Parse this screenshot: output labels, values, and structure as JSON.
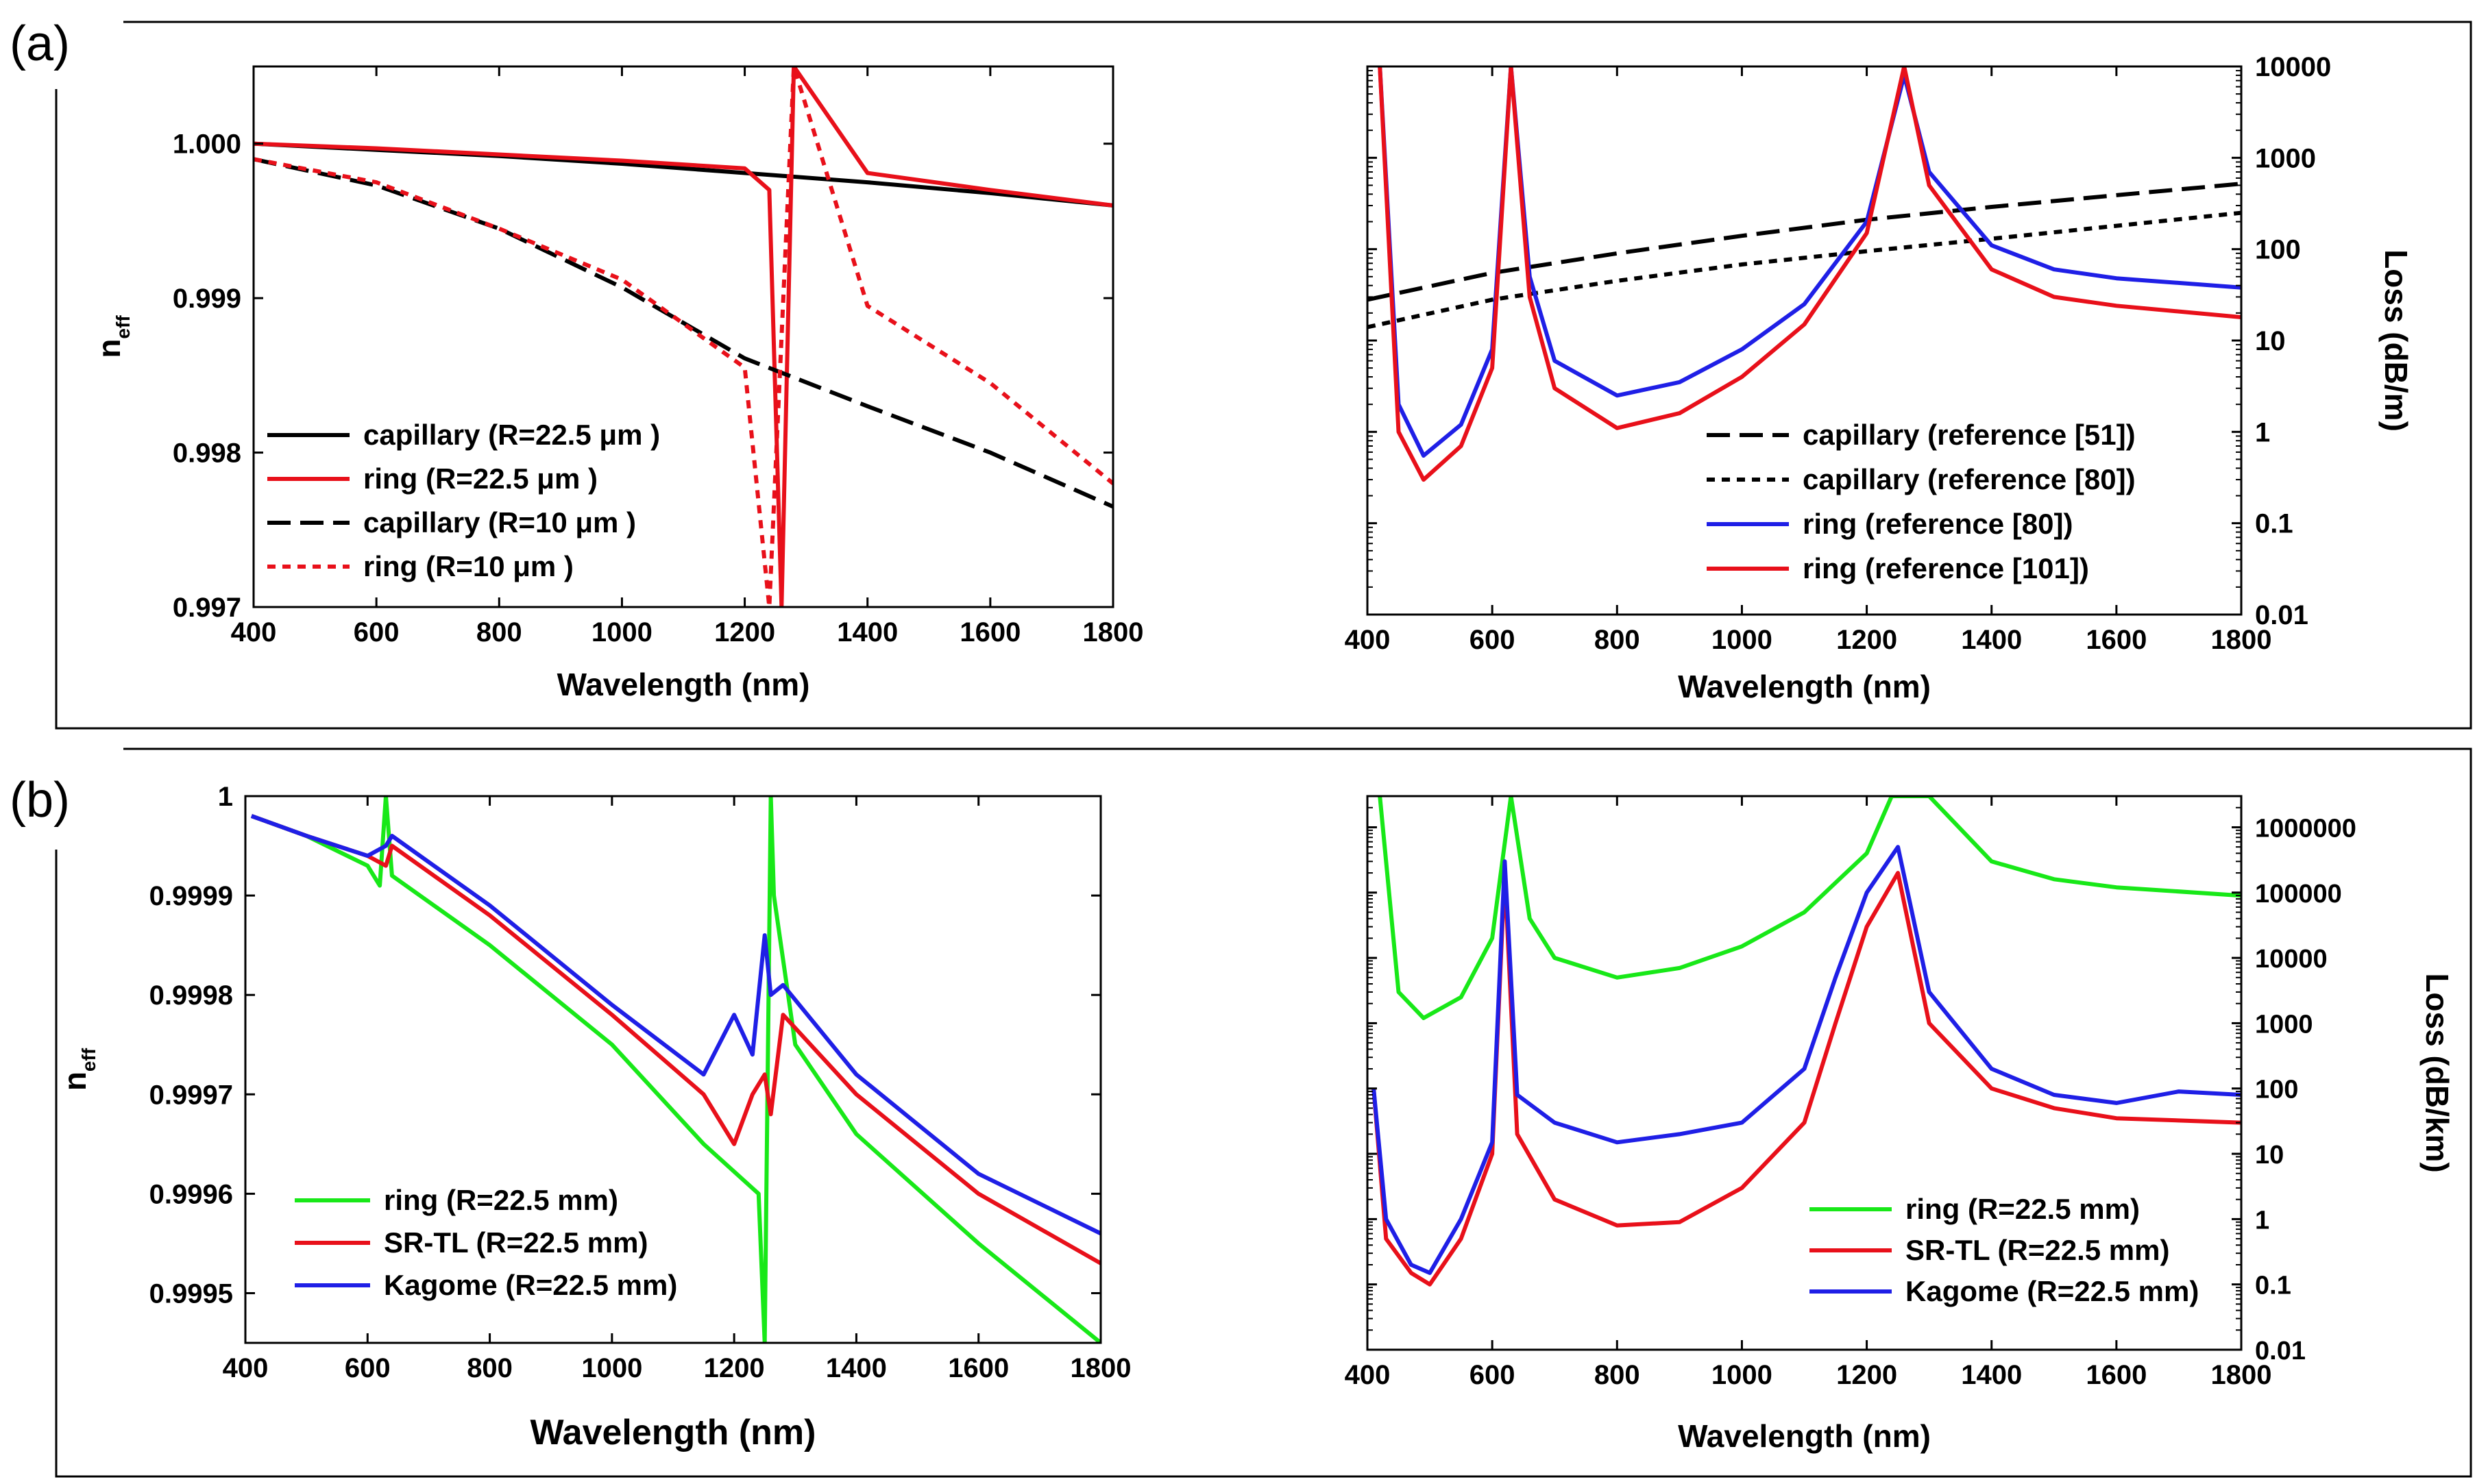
{
  "figure": {
    "panel_labels": [
      "(a)",
      "(b)"
    ]
  },
  "chart_data": [
    {
      "id": "a-left",
      "type": "line",
      "xlabel": "Wavelength (nm)",
      "ylabel": "n",
      "ylabel_sub": "eff",
      "xlim": [
        400,
        1800
      ],
      "ylim": [
        0.997,
        1.0005
      ],
      "xticks": [
        "400",
        "600",
        "800",
        "1000",
        "1200",
        "1400",
        "1600",
        "1800"
      ],
      "xtick_values": [
        400,
        600,
        800,
        1000,
        1200,
        1400,
        1600,
        1800
      ],
      "yticks": [
        "0.997",
        "0.998",
        "0.999",
        "1.000"
      ],
      "ytick_values": [
        0.997,
        0.998,
        0.999,
        1.0
      ],
      "legend": [
        {
          "label": "capillary (R=22.5 μm )",
          "color": "#000000",
          "dash": "solid"
        },
        {
          "label": "ring (R=22.5 μm )",
          "color": "#e8101a",
          "dash": "solid"
        },
        {
          "label": "capillary (R=10 μm )",
          "color": "#000000",
          "dash": "longdash"
        },
        {
          "label": "ring (R=10 μm )",
          "color": "#e8101a",
          "dash": "shortdash"
        }
      ],
      "series": [
        {
          "name": "capillary (R=22.5 μm)",
          "x": [
            400,
            600,
            800,
            1000,
            1200,
            1400,
            1600,
            1800
          ],
          "values": [
            1.0,
            0.99996,
            0.99992,
            0.99987,
            0.99981,
            0.99975,
            0.99968,
            0.9996
          ]
        },
        {
          "name": "ring (R=22.5 μm)",
          "x": [
            400,
            600,
            800,
            1000,
            1200,
            1240,
            1260,
            1280,
            1400,
            1600,
            1800
          ],
          "values": [
            1.0,
            0.99997,
            0.99993,
            0.99989,
            0.99984,
            0.9997,
            0.997,
            1.0005,
            0.99981,
            0.9997,
            0.9996
          ]
        },
        {
          "name": "capillary (R=10 μm)",
          "x": [
            400,
            600,
            800,
            1000,
            1200,
            1400,
            1600,
            1800
          ],
          "values": [
            0.9999,
            0.99973,
            0.99945,
            0.99907,
            0.99861,
            0.9983,
            0.998,
            0.99765
          ]
        },
        {
          "name": "ring (R=10 μm)",
          "x": [
            400,
            600,
            800,
            1000,
            1200,
            1240,
            1280,
            1400,
            1600,
            1800
          ],
          "values": [
            0.9999,
            0.99975,
            0.99945,
            0.99912,
            0.99855,
            0.997,
            1.0005,
            0.99895,
            0.99845,
            0.9978
          ]
        }
      ]
    },
    {
      "id": "a-right",
      "type": "line",
      "xlabel": "Wavelength (nm)",
      "ylabel": "Loss (dB/m)",
      "yscale": "log",
      "xlim": [
        400,
        1800
      ],
      "ylim": [
        0.01,
        10000
      ],
      "xticks": [
        "400",
        "600",
        "800",
        "1000",
        "1200",
        "1400",
        "1600",
        "1800"
      ],
      "xtick_values": [
        400,
        600,
        800,
        1000,
        1200,
        1400,
        1600,
        1800
      ],
      "yticks": [
        "0.01",
        "0.1",
        "1",
        "10",
        "100",
        "1000",
        "10000"
      ],
      "ytick_values": [
        0.01,
        0.1,
        1,
        10,
        100,
        1000,
        10000
      ],
      "legend": [
        {
          "label": "capillary (reference [51])",
          "color": "#000000",
          "dash": "longdash"
        },
        {
          "label": "capillary (reference [80])",
          "color": "#000000",
          "dash": "shortdash"
        },
        {
          "label": "ring (reference [80])",
          "color": "#1f1fe6",
          "dash": "solid"
        },
        {
          "label": "ring (reference [101])",
          "color": "#e8101a",
          "dash": "solid"
        }
      ],
      "series": [
        {
          "name": "capillary (reference [51])",
          "x": [
            400,
            600,
            800,
            1000,
            1200,
            1400,
            1600,
            1800
          ],
          "values": [
            28,
            55,
            90,
            140,
            210,
            290,
            390,
            520
          ]
        },
        {
          "name": "capillary (reference [80])",
          "x": [
            400,
            600,
            800,
            1000,
            1200,
            1400,
            1600,
            1800
          ],
          "values": [
            14,
            28,
            45,
            68,
            95,
            130,
            180,
            250
          ]
        },
        {
          "name": "ring (reference [80])",
          "x": [
            420,
            450,
            490,
            550,
            600,
            630,
            660,
            700,
            800,
            900,
            1000,
            1100,
            1200,
            1260,
            1300,
            1400,
            1500,
            1600,
            1800
          ],
          "values": [
            10000,
            2.0,
            0.55,
            1.2,
            8,
            10000,
            50,
            6,
            2.5,
            3.5,
            8,
            25,
            200,
            8000,
            700,
            110,
            60,
            48,
            38
          ]
        },
        {
          "name": "ring (reference [101])",
          "x": [
            420,
            450,
            490,
            550,
            600,
            630,
            660,
            700,
            800,
            900,
            1000,
            1100,
            1200,
            1260,
            1300,
            1400,
            1500,
            1600,
            1800
          ],
          "values": [
            10000,
            1.0,
            0.3,
            0.7,
            5,
            10000,
            30,
            3,
            1.1,
            1.6,
            4,
            15,
            150,
            10000,
            500,
            60,
            30,
            24,
            18
          ]
        }
      ]
    },
    {
      "id": "b-left",
      "type": "line",
      "xlabel": "Wavelength (nm)",
      "ylabel": "n",
      "ylabel_sub": "eff",
      "xlim": [
        400,
        1800
      ],
      "ylim": [
        0.99945,
        1.0
      ],
      "xticks": [
        "400",
        "600",
        "800",
        "1000",
        "1200",
        "1400",
        "1600",
        "1800"
      ],
      "xtick_values": [
        400,
        600,
        800,
        1000,
        1200,
        1400,
        1600,
        1800
      ],
      "yticks": [
        "0.9995",
        "0.9996",
        "0.9997",
        "0.9998",
        "0.9999",
        "1"
      ],
      "ytick_values": [
        0.9995,
        0.9996,
        0.9997,
        0.9998,
        0.9999,
        1.0
      ],
      "legend": [
        {
          "label": "ring (R=22.5 mm)",
          "color": "#18e818",
          "dash": "solid"
        },
        {
          "label": "SR-TL (R=22.5 mm)",
          "color": "#e8101a",
          "dash": "solid"
        },
        {
          "label": "Kagome (R=22.5 mm)",
          "color": "#1f1fe6",
          "dash": "solid"
        }
      ],
      "series": [
        {
          "name": "ring (R=22.5 mm)",
          "x": [
            410,
            500,
            600,
            620,
            630,
            640,
            800,
            1000,
            1150,
            1240,
            1250,
            1260,
            1265,
            1300,
            1400,
            1600,
            1800
          ],
          "values": [
            0.99998,
            0.99996,
            0.99993,
            0.99991,
            1.0,
            0.99992,
            0.99985,
            0.99975,
            0.99965,
            0.9996,
            0.99945,
            1.0,
            0.9999,
            0.99975,
            0.99966,
            0.99955,
            0.99945
          ]
        },
        {
          "name": "SR-TL (R=22.5 mm)",
          "x": [
            410,
            500,
            600,
            630,
            640,
            800,
            1000,
            1150,
            1200,
            1230,
            1250,
            1260,
            1280,
            1400,
            1600,
            1800
          ],
          "values": [
            0.99998,
            0.99996,
            0.99994,
            0.99993,
            0.99995,
            0.99988,
            0.99978,
            0.9997,
            0.99965,
            0.9997,
            0.99972,
            0.99968,
            0.99978,
            0.9997,
            0.9996,
            0.99953
          ]
        },
        {
          "name": "Kagome (R=22.5 mm)",
          "x": [
            410,
            500,
            600,
            630,
            640,
            800,
            1000,
            1150,
            1200,
            1230,
            1250,
            1260,
            1280,
            1400,
            1600,
            1800
          ],
          "values": [
            0.99998,
            0.99996,
            0.99994,
            0.99995,
            0.99996,
            0.99989,
            0.99979,
            0.99972,
            0.99978,
            0.99974,
            0.99986,
            0.9998,
            0.99981,
            0.99972,
            0.99962,
            0.99956
          ]
        }
      ]
    },
    {
      "id": "b-right",
      "type": "line",
      "xlabel": "Wavelength (nm)",
      "ylabel": "Loss (dB/km)",
      "yscale": "log",
      "xlim": [
        400,
        1800
      ],
      "ylim": [
        0.01,
        3000000
      ],
      "xticks": [
        "400",
        "600",
        "800",
        "1000",
        "1200",
        "1400",
        "1600",
        "1800"
      ],
      "xtick_values": [
        400,
        600,
        800,
        1000,
        1200,
        1400,
        1600,
        1800
      ],
      "yticks": [
        "0.01",
        "0.1",
        "1",
        "10",
        "100",
        "1000",
        "10000",
        "100000",
        "1000000"
      ],
      "ytick_values": [
        0.01,
        0.1,
        1,
        10,
        100,
        1000,
        10000,
        100000,
        1000000
      ],
      "legend": [
        {
          "label": "ring (R=22.5 mm)",
          "color": "#18e818",
          "dash": "solid"
        },
        {
          "label": "SR-TL (R=22.5 mm)",
          "color": "#e8101a",
          "dash": "solid"
        },
        {
          "label": "Kagome (R=22.5 mm)",
          "color": "#1f1fe6",
          "dash": "solid"
        }
      ],
      "series": [
        {
          "name": "ring (R=22.5 mm)",
          "x": [
            420,
            450,
            490,
            550,
            600,
            630,
            660,
            700,
            800,
            900,
            1000,
            1100,
            1200,
            1240,
            1300,
            1400,
            1500,
            1600,
            1800
          ],
          "values": [
            3000000,
            3000,
            1200,
            2500,
            20000,
            3000000,
            40000,
            10000,
            5000,
            7000,
            15000,
            50000,
            400000,
            3000000,
            3000000,
            300000,
            160000,
            120000,
            90000
          ]
        },
        {
          "name": "SR-TL (R=22.5 mm)",
          "x": [
            410,
            430,
            470,
            500,
            550,
            600,
            620,
            640,
            700,
            800,
            900,
            1000,
            1100,
            1150,
            1200,
            1250,
            1300,
            1400,
            1500,
            1600,
            1800
          ],
          "values": [
            100,
            0.5,
            0.15,
            0.1,
            0.5,
            10,
            200000,
            20,
            2,
            0.8,
            0.9,
            3,
            30,
            1000,
            30000,
            200000,
            1000,
            100,
            50,
            35,
            30
          ]
        },
        {
          "name": "Kagome (R=22.5 mm)",
          "x": [
            410,
            430,
            470,
            500,
            550,
            600,
            620,
            640,
            700,
            800,
            900,
            1000,
            1100,
            1150,
            1200,
            1250,
            1300,
            1400,
            1500,
            1600,
            1700,
            1800
          ],
          "values": [
            100,
            1.0,
            0.2,
            0.15,
            1.0,
            15,
            300000,
            80,
            30,
            15,
            20,
            30,
            200,
            5000,
            100000,
            500000,
            3000,
            200,
            80,
            60,
            90,
            80
          ]
        }
      ]
    }
  ]
}
